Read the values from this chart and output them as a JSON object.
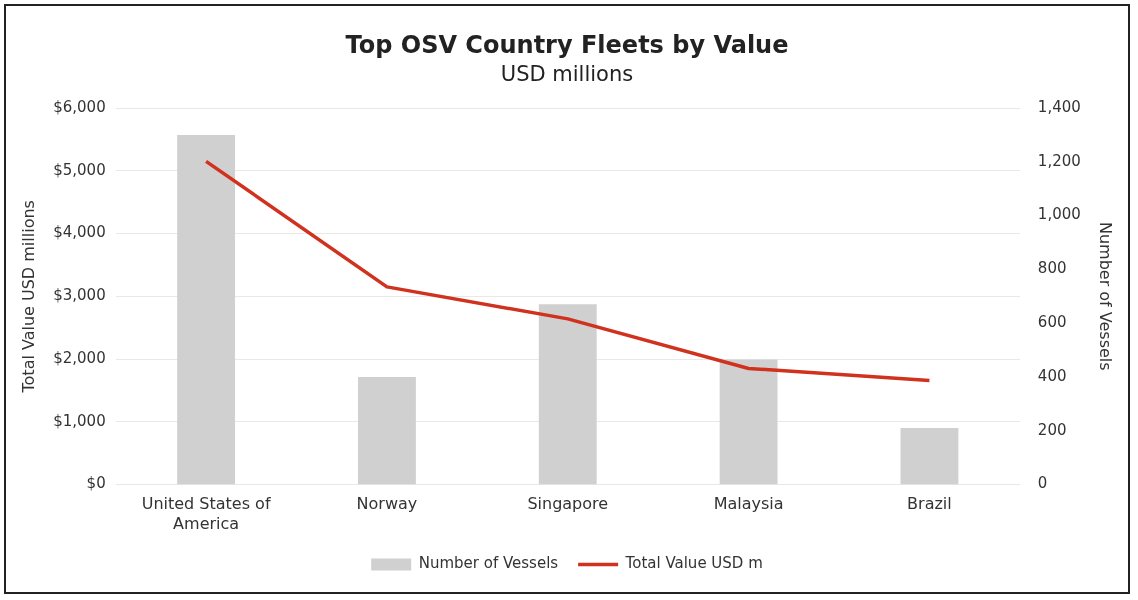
{
  "chart_data": {
    "type": "bar",
    "title": "Top OSV Country Fleets by Value",
    "subtitle": "USD millions",
    "ylabel": "Total Value USD millions",
    "y2label": "Number of Vessels",
    "categories": [
      "United States of America",
      "Norway",
      "Singapore",
      "Malaysia",
      "Brazil"
    ],
    "series": [
      {
        "name": "Number of Vessels",
        "type": "bar",
        "axis": "y2",
        "color": "#d0d0d0",
        "values": [
          1300,
          400,
          670,
          465,
          210
        ]
      },
      {
        "name": "Total Value USD m",
        "type": "line",
        "color": "#d0321e",
        "values": [
          5150,
          3150,
          2640,
          1850,
          1660
        ]
      }
    ],
    "ylim": [
      0,
      6000
    ],
    "yticks": [
      {
        "value": 0,
        "label": "$0"
      },
      {
        "value": 1000,
        "label": "$1,000"
      },
      {
        "value": 2000,
        "label": "$2,000"
      },
      {
        "value": 3000,
        "label": "$3,000"
      },
      {
        "value": 4000,
        "label": "$4,000"
      },
      {
        "value": 5000,
        "label": "$5,000"
      },
      {
        "value": 6000,
        "label": "$6,000"
      }
    ],
    "y2lim": [
      0,
      1400
    ],
    "y2ticks": [
      0,
      200,
      400,
      600,
      800,
      {
        "value": 1000,
        "label": "1,000"
      },
      {
        "value": 1200,
        "label": "1,200"
      },
      {
        "value": 1400,
        "label": "1,400"
      }
    ],
    "grid": "y",
    "legend": "bottom",
    "marker": "none"
  }
}
